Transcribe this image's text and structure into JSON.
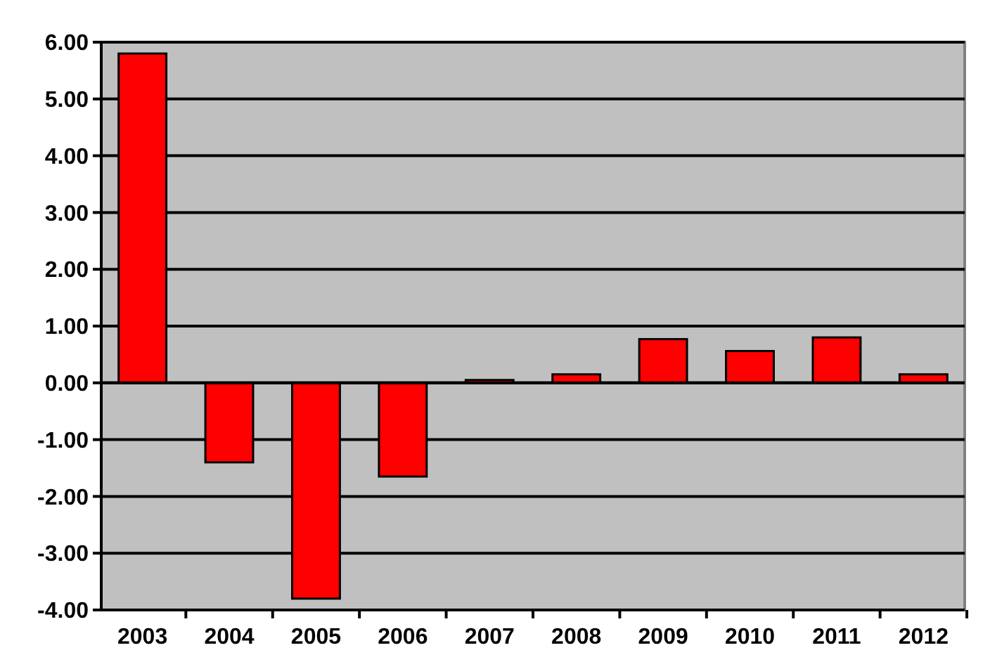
{
  "chart_data": {
    "type": "bar",
    "categories": [
      "2003",
      "2004",
      "2005",
      "2006",
      "2007",
      "2008",
      "2009",
      "2010",
      "2011",
      "2012"
    ],
    "values": [
      5.8,
      -1.4,
      -3.8,
      -1.65,
      0.05,
      0.15,
      0.77,
      0.56,
      0.8,
      0.15
    ],
    "color": "#ff0000",
    "ylim": [
      -4,
      6
    ],
    "yticks": [
      {
        "value": -4,
        "label": "-4.00"
      },
      {
        "value": -3,
        "label": "-3.00"
      },
      {
        "value": -2,
        "label": "-2.00"
      },
      {
        "value": -1,
        "label": "-1.00"
      },
      {
        "value": 0,
        "label": "0.00"
      },
      {
        "value": 1,
        "label": "1.00"
      },
      {
        "value": 2,
        "label": "2.00"
      },
      {
        "value": 3,
        "label": "3.00"
      },
      {
        "value": 4,
        "label": "4.00"
      },
      {
        "value": 5,
        "label": "5.00"
      },
      {
        "value": 6,
        "label": "6.00"
      }
    ],
    "grid": true
  }
}
